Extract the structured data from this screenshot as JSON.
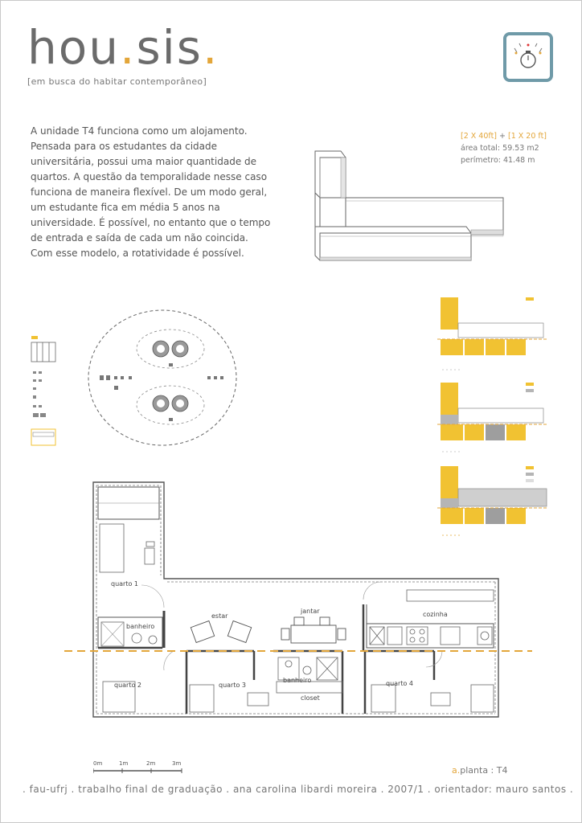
{
  "header": {
    "logo_part1": "hou",
    "logo_dot1": ".",
    "logo_part2": "sis",
    "logo_dot2": ".",
    "subtitle": "[em busca do habitar contemporâneo]"
  },
  "description": "A unidade T4 funciona como um alojamento. Pensada para os estudantes da cidade universitária, possui uma maior quantidade de quartos. A questão da temporalidade nesse caso funciona de maneira flexível. De um modo geral, um estudante fica em média 5 anos na universidade. É possível, no entanto que o tempo de entrada e saída de cada um não coincida. Com esse modelo, a rotatividade é possível.",
  "specs": {
    "config_a": "[2 X 40ft]",
    "config_plus": " + ",
    "config_b": "[1 X 20 ft]",
    "area": "área total: 59.53 m2",
    "perimeter": "perímetro: 41.48 m"
  },
  "plan": {
    "rooms": {
      "quarto1": "quarto 1",
      "banheiro1": "banheiro",
      "estar": "estar",
      "jantar": "jantar",
      "cozinha": "cozinha",
      "quarto2": "quarto 2",
      "quarto3": "quarto 3",
      "banheiro2": "banheiro",
      "closet": "closet",
      "quarto4": "quarto 4"
    },
    "scale": [
      "0m",
      "1m",
      "2m",
      "3m"
    ]
  },
  "caption": {
    "prefix": "a.",
    "text": "planta : T4"
  },
  "footer": ". fau-ufrj . trabalho final de graduação . ana carolina libardi moreira . 2007/1 . orientador: mauro santos .",
  "colors": {
    "accent": "#e3a63a",
    "badge": "#6f9aa8",
    "yellow_fill": "#f1c232",
    "gray_fill": "#b5b5b5"
  }
}
